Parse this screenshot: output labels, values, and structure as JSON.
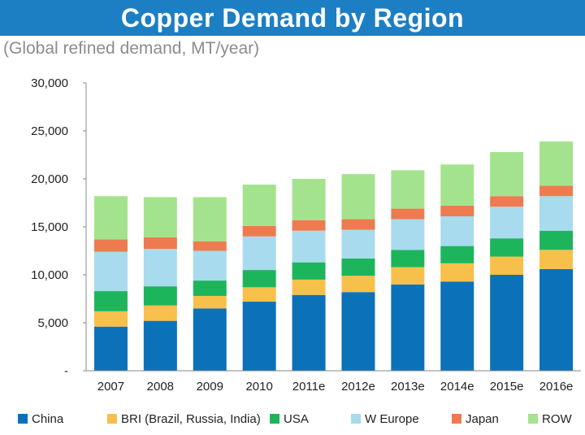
{
  "title": "Copper Demand by Region",
  "subtitle": "(Global refined demand, MT/year)",
  "colors": {
    "title_bar": "#1c7fc4"
  },
  "chart_data": {
    "type": "bar",
    "stacked": true,
    "categories": [
      "2007",
      "2008",
      "2009",
      "2010",
      "2011e",
      "2012e",
      "2013e",
      "2014e",
      "2015e",
      "2016e"
    ],
    "ylim": [
      0,
      30000
    ],
    "yticks": [
      0,
      5000,
      10000,
      15000,
      20000,
      25000,
      30000
    ],
    "ytick_labels": [
      "-",
      "5,000",
      "10,000",
      "15,000",
      "20,000",
      "25,000",
      "30,000"
    ],
    "grid": false,
    "legend_position": "bottom",
    "series": [
      {
        "name": "China",
        "color": "#0b72b9",
        "values": [
          4600,
          5200,
          6500,
          7200,
          7900,
          8200,
          9000,
          9300,
          10000,
          10600
        ]
      },
      {
        "name": "BRI (Brazil, Russia, India)",
        "color": "#f7c04a",
        "values": [
          1600,
          1600,
          1300,
          1500,
          1600,
          1700,
          1800,
          1900,
          1900,
          2000
        ]
      },
      {
        "name": "USA",
        "color": "#1db55c",
        "values": [
          2100,
          2000,
          1600,
          1800,
          1800,
          1800,
          1800,
          1800,
          1900,
          2000
        ]
      },
      {
        "name": "W Europe",
        "color": "#a8dbee",
        "values": [
          4100,
          3900,
          3100,
          3500,
          3300,
          3000,
          3200,
          3100,
          3300,
          3600
        ]
      },
      {
        "name": "Japan",
        "color": "#ee7b4f",
        "values": [
          1300,
          1200,
          1000,
          1100,
          1100,
          1100,
          1100,
          1100,
          1100,
          1100
        ]
      },
      {
        "name": "ROW",
        "color": "#a4e38d",
        "values": [
          4500,
          4200,
          4600,
          4300,
          4300,
          4700,
          4000,
          4300,
          4600,
          4600
        ]
      }
    ]
  }
}
